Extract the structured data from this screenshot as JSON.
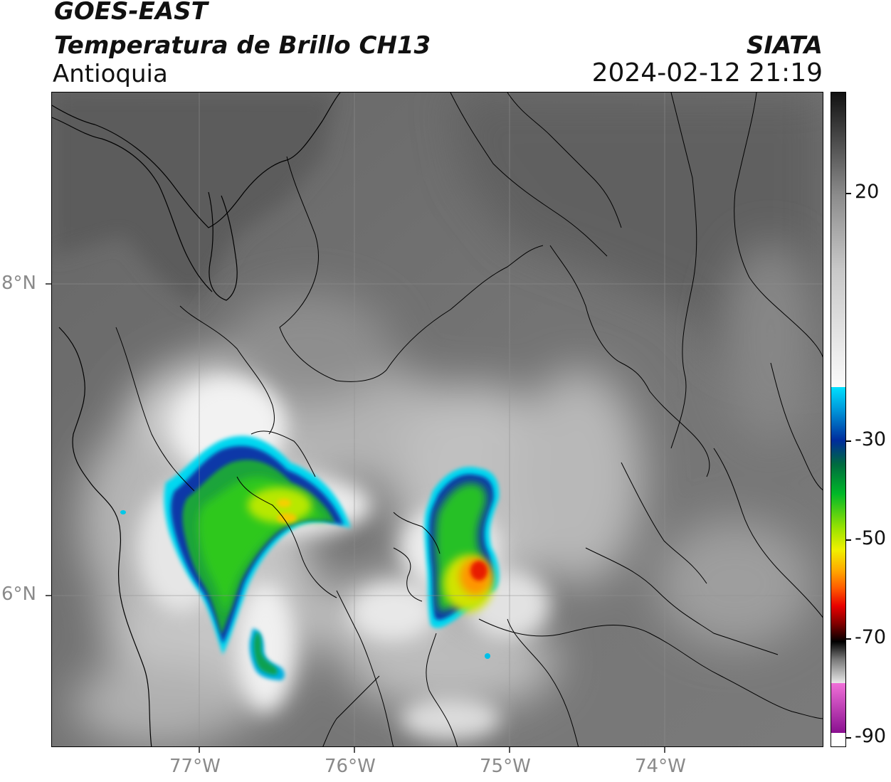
{
  "header": {
    "satellite": "GOES-EAST",
    "product": "Temperatura de Brillo CH13",
    "region": "Antioquia",
    "organization": "SIATA",
    "timestamp": "2024-02-12 21:19"
  },
  "map": {
    "lat_labels": [
      "8°N",
      "6°N"
    ],
    "lon_labels": [
      "77°W",
      "76°W",
      "75°W",
      "74°W"
    ],
    "lon_range": [
      -77.95,
      -72.98
    ],
    "lat_range": [
      5.0,
      9.2
    ],
    "gridlines": true
  },
  "colorbar": {
    "tick_labels": [
      "20",
      "-30",
      "-50",
      "-70",
      "-90"
    ],
    "palette": {
      "warm_gray": "#6e6e6e",
      "light_gray": "#f5f5f5",
      "cyan": "#00d8f0",
      "blue": "#002c9c",
      "green": "#00b828",
      "yellow": "#e8f000",
      "orange": "#ff8a00",
      "red": "#e80000",
      "black": "#000000",
      "pink": "#e860c8",
      "purple": "#9a1e9a"
    }
  }
}
